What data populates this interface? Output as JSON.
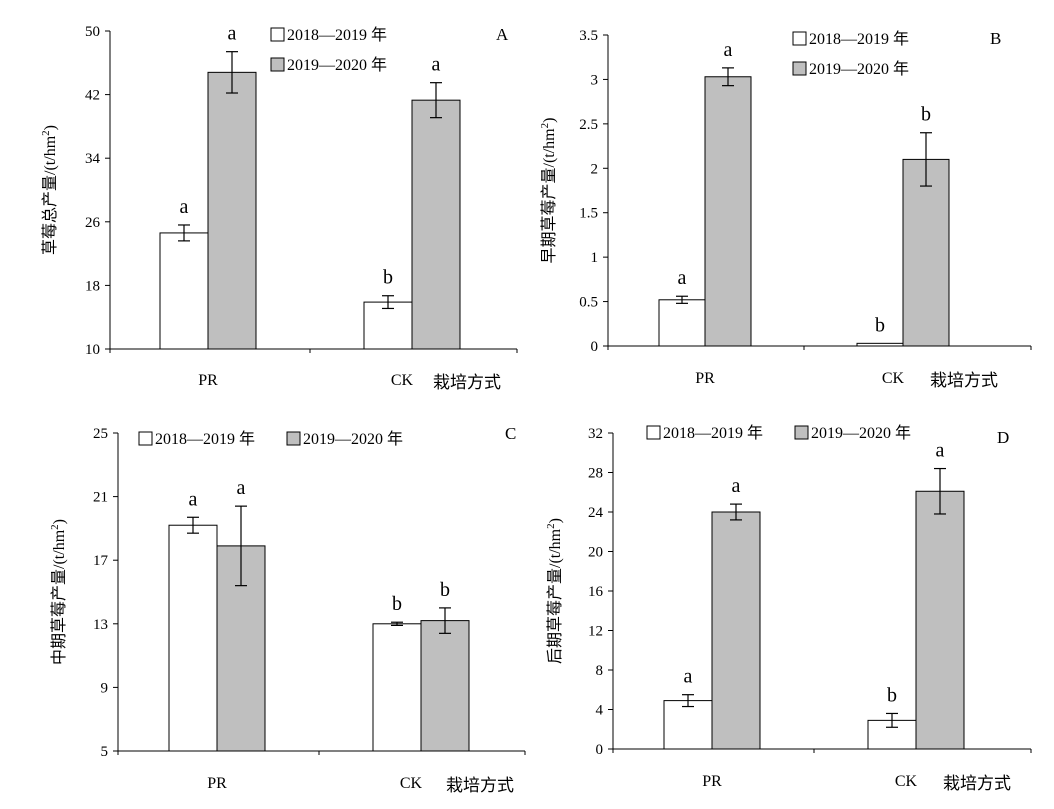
{
  "colors": {
    "series_2018": "#ffffff",
    "series_2019": "#bfbfbf",
    "stroke": "#000000"
  },
  "chart_data": [
    {
      "type": "bar",
      "panel": "A",
      "title": "",
      "ylabel": "草莓总产量/(t/hm²)",
      "ylabel_main": "草莓总产量/(t/hm",
      "ylabel_sup": "2",
      "ylabel_end": ")",
      "xlabel": "栽培方式",
      "categories": [
        "PR",
        "CK"
      ],
      "ylim": [
        10,
        50
      ],
      "yticks": [
        "10",
        "18",
        "26",
        "34",
        "42",
        "50"
      ],
      "series": [
        {
          "name": "2018—2019 年",
          "values": [
            24.6,
            15.9
          ],
          "errors": [
            1.0,
            0.8
          ],
          "sig": [
            "a",
            "b"
          ]
        },
        {
          "name": "2019—2020 年",
          "values": [
            44.8,
            41.3
          ],
          "errors": [
            2.6,
            2.2
          ],
          "sig": [
            "a",
            "a"
          ]
        }
      ]
    },
    {
      "type": "bar",
      "panel": "B",
      "title": "",
      "ylabel": "早期草莓产量/(t/hm²)",
      "ylabel_main": "早期草莓产量/(t/hm",
      "ylabel_sup": "2",
      "ylabel_end": ")",
      "xlabel": "栽培方式",
      "categories": [
        "PR",
        "CK"
      ],
      "ylim": [
        0,
        3.5
      ],
      "yticks": [
        "0",
        "0.5",
        "1",
        "1.5",
        "2",
        "2.5",
        "3",
        "3.5"
      ],
      "series": [
        {
          "name": "2018—2019 年",
          "values": [
            0.52,
            0.03
          ],
          "errors": [
            0.04,
            0.0
          ],
          "sig": [
            "a",
            "b"
          ]
        },
        {
          "name": "2019—2020 年",
          "values": [
            3.03,
            2.1
          ],
          "errors": [
            0.1,
            0.3
          ],
          "sig": [
            "a",
            "b"
          ]
        }
      ]
    },
    {
      "type": "bar",
      "panel": "C",
      "title": "",
      "ylabel": "中期草莓产量/(t/hm²)",
      "ylabel_main": "中期草莓产量/(t/hm",
      "ylabel_sup": "2",
      "ylabel_end": ")",
      "xlabel": "栽培方式",
      "categories": [
        "PR",
        "CK"
      ],
      "ylim": [
        5,
        25
      ],
      "yticks": [
        "5",
        "9",
        "13",
        "17",
        "21",
        "25"
      ],
      "series": [
        {
          "name": "2018—2019 年",
          "values": [
            19.2,
            13.0
          ],
          "errors": [
            0.5,
            0.1
          ],
          "sig": [
            "a",
            "b"
          ]
        },
        {
          "name": "2019—2020 年",
          "values": [
            17.9,
            13.2
          ],
          "errors": [
            2.5,
            0.8
          ],
          "sig": [
            "a",
            "b"
          ]
        }
      ]
    },
    {
      "type": "bar",
      "panel": "D",
      "title": "",
      "ylabel": "后期草莓产量/(t/hm²)",
      "ylabel_main": "后期草莓产量/(t/hm",
      "ylabel_sup": "2",
      "ylabel_end": ")",
      "xlabel": "栽培方式",
      "categories": [
        "PR",
        "CK"
      ],
      "ylim": [
        0,
        32
      ],
      "yticks": [
        "0",
        "4",
        "8",
        "12",
        "16",
        "20",
        "24",
        "28",
        "32"
      ],
      "series": [
        {
          "name": "2018—2019 年",
          "values": [
            4.9,
            2.9
          ],
          "errors": [
            0.6,
            0.7
          ],
          "sig": [
            "a",
            "b"
          ]
        },
        {
          "name": "2019—2020 年",
          "values": [
            24.0,
            26.1
          ],
          "errors": [
            0.8,
            2.3
          ],
          "sig": [
            "a",
            "a"
          ]
        }
      ]
    }
  ]
}
